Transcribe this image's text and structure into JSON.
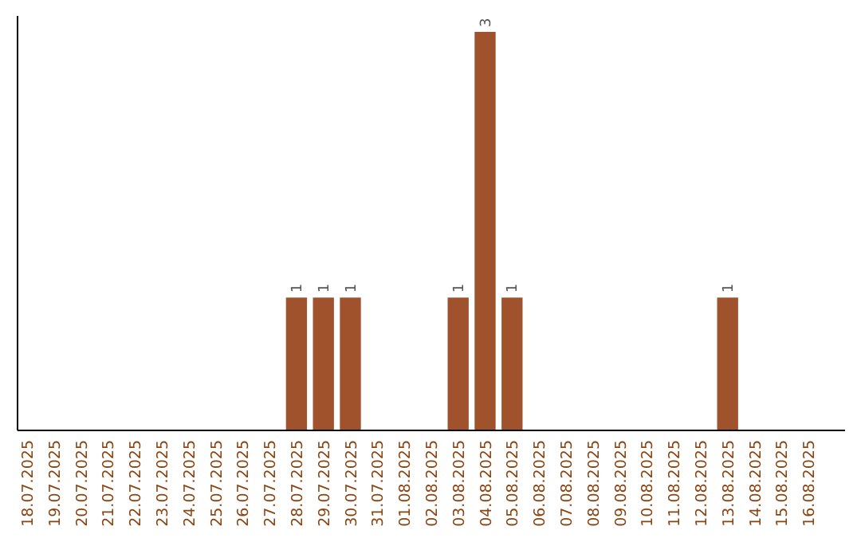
{
  "chart_data": {
    "type": "bar",
    "categories": [
      "18.07.2025",
      "19.07.2025",
      "20.07.2025",
      "21.07.2025",
      "22.07.2025",
      "23.07.2025",
      "24.07.2025",
      "25.07.2025",
      "26.07.2025",
      "27.07.2025",
      "28.07.2025",
      "29.07.2025",
      "30.07.2025",
      "31.07.2025",
      "01.08.2025",
      "02.08.2025",
      "03.08.2025",
      "04.08.2025",
      "05.08.2025",
      "06.08.2025",
      "07.08.2025",
      "08.08.2025",
      "09.08.2025",
      "10.08.2025",
      "11.08.2025",
      "12.08.2025",
      "13.08.2025",
      "14.08.2025",
      "15.08.2025",
      "16.08.2025"
    ],
    "values": [
      0,
      0,
      0,
      0,
      0,
      0,
      0,
      0,
      0,
      0,
      1,
      1,
      1,
      0,
      0,
      0,
      1,
      3,
      1,
      0,
      0,
      0,
      0,
      0,
      0,
      0,
      1,
      0,
      0,
      0
    ],
    "value_labels": [
      null,
      null,
      null,
      null,
      null,
      null,
      null,
      null,
      null,
      null,
      "1",
      "1",
      "1",
      null,
      null,
      null,
      "1",
      "3",
      "1",
      null,
      null,
      null,
      null,
      null,
      null,
      null,
      "1",
      null,
      null,
      null
    ],
    "color": "#a0522d",
    "ylim": [
      0,
      3
    ],
    "tick_labels": "x"
  }
}
